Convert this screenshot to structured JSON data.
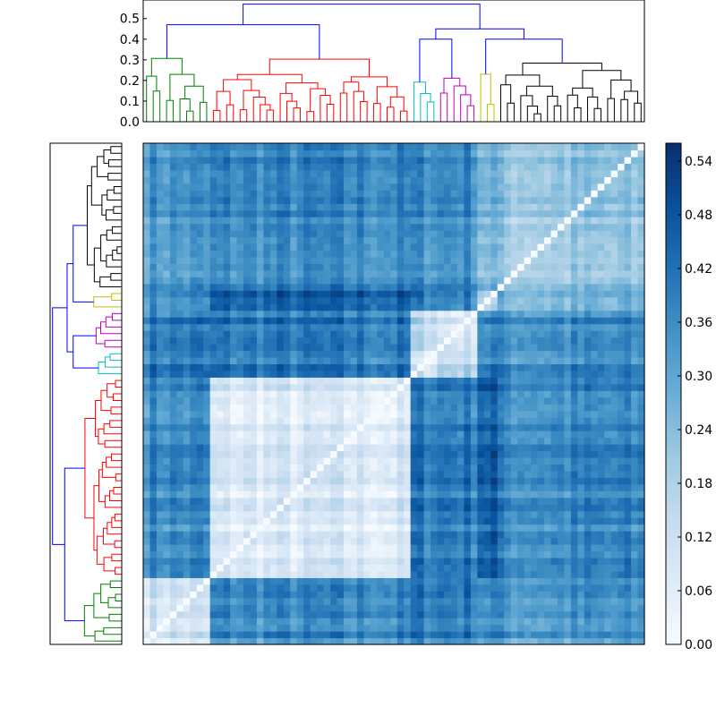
{
  "chart_data": [
    {
      "type": "dendrogram",
      "orientation": "top",
      "ylim": [
        0,
        0.59
      ],
      "yticks": [
        "0.0",
        "0.1",
        "0.2",
        "0.3",
        "0.4",
        "0.5"
      ],
      "link_color": "#0000ff",
      "clusters": [
        {
          "color": "#008000",
          "leaves": 10
        },
        {
          "color": "#ff0000",
          "leaves": 30
        },
        {
          "color": "#00bfbf",
          "leaves": 4
        },
        {
          "color": "#bf00bf",
          "leaves": 6
        },
        {
          "color": "#bfbf00",
          "leaves": 3
        },
        {
          "color": "#000000",
          "leaves": 22
        }
      ],
      "merge_heights": {
        "top": 0.57,
        "left_group": 0.47,
        "right_group": 0.49,
        "right_sub": 0.45,
        "black_sub": 0.4
      }
    },
    {
      "type": "dendrogram",
      "orientation": "left",
      "link_color": "#0000ff",
      "clusters_top_to_bottom": [
        {
          "color": "#000000",
          "leaves": 22
        },
        {
          "color": "#bfbf00",
          "leaves": 3
        },
        {
          "color": "#bf00bf",
          "leaves": 6
        },
        {
          "color": "#00bfbf",
          "leaves": 4
        },
        {
          "color": "#ff0000",
          "leaves": 30
        },
        {
          "color": "#008000",
          "leaves": 10
        }
      ]
    },
    {
      "type": "heatmap",
      "rows": 75,
      "cols": 75,
      "diagonal": "symmetric distance matrix, diagonal = 0.00",
      "block_groups": [
        {
          "name": "green",
          "start": 0,
          "end": 10
        },
        {
          "name": "red",
          "start": 10,
          "end": 40
        },
        {
          "name": "cyan",
          "start": 40,
          "end": 44
        },
        {
          "name": "magenta",
          "start": 44,
          "end": 50
        },
        {
          "name": "olive",
          "start": 50,
          "end": 53
        },
        {
          "name": "black",
          "start": 53,
          "end": 75
        }
      ],
      "within_block_values": {
        "green": 0.1,
        "red": 0.07,
        "cyan": 0.09,
        "magenta": 0.1,
        "olive": 0.18,
        "black": 0.21
      },
      "between_block_values": [
        [
          0.1,
          0.36,
          0.4,
          0.4,
          0.36,
          0.33
        ],
        [
          0.36,
          0.07,
          0.4,
          0.4,
          0.46,
          0.36
        ],
        [
          0.4,
          0.4,
          0.09,
          0.16,
          0.4,
          0.36
        ],
        [
          0.4,
          0.4,
          0.16,
          0.1,
          0.38,
          0.36
        ],
        [
          0.36,
          0.46,
          0.4,
          0.38,
          0.18,
          0.26
        ],
        [
          0.33,
          0.36,
          0.36,
          0.36,
          0.26,
          0.21
        ]
      ],
      "colormap": "Blues",
      "vmin": 0.0,
      "vmax": 0.56
    }
  ],
  "colorbar": {
    "ticks": [
      "0.00",
      "0.06",
      "0.12",
      "0.18",
      "0.24",
      "0.30",
      "0.36",
      "0.42",
      "0.48",
      "0.54"
    ],
    "vmin": 0.0,
    "vmax": 0.56
  }
}
